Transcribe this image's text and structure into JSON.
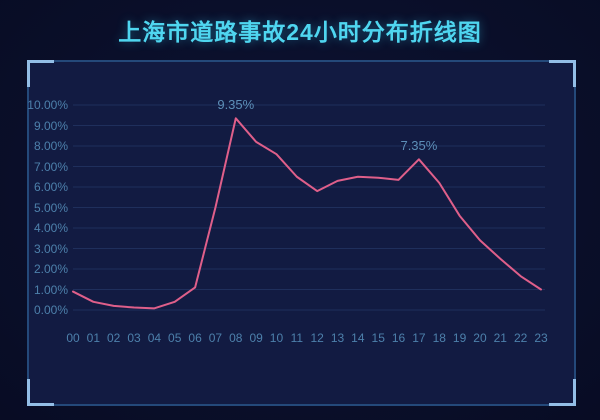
{
  "page": {
    "title": "上海市道路事故24小时分布折线图"
  },
  "colors": {
    "background_outer": "#080c24",
    "background_panel": "#121b42",
    "frame_border": "#24497a",
    "corner_accent": "#93bee6",
    "title_text": "#4fd6f0",
    "axis_label": "#4d80ab",
    "gridline": "#1f2f5c",
    "line": "#df5f8a"
  },
  "chart_data": {
    "type": "line",
    "title": "上海市道路事故24小时分布折线图",
    "categories": [
      "00",
      "01",
      "02",
      "03",
      "04",
      "05",
      "06",
      "07",
      "08",
      "09",
      "10",
      "11",
      "12",
      "13",
      "14",
      "15",
      "16",
      "17",
      "18",
      "19",
      "20",
      "21",
      "22",
      "23"
    ],
    "values": [
      0.9,
      0.4,
      0.2,
      0.12,
      0.08,
      0.4,
      1.1,
      5.0,
      9.35,
      8.2,
      7.6,
      6.5,
      5.8,
      6.3,
      6.5,
      6.45,
      6.35,
      7.35,
      6.2,
      4.6,
      3.4,
      2.5,
      1.65,
      1.0
    ],
    "unit": "%",
    "xlabel": "",
    "ylabel": "",
    "y_ticks": [
      "10.00%",
      "9.00%",
      "8.00%",
      "7.00%",
      "6.00%",
      "5.00%",
      "4.00%",
      "3.00%",
      "2.00%",
      "1.00%",
      "0.00%"
    ],
    "ylim": [
      0,
      10
    ],
    "grid": true,
    "legend": false,
    "line_color": "#df5f8a",
    "annotations": [
      {
        "text": "9.35%",
        "category": "08",
        "hour_index": 8,
        "value": 9.35
      },
      {
        "text": "7.35%",
        "category": "17",
        "hour_index": 17,
        "value": 7.35
      }
    ]
  }
}
